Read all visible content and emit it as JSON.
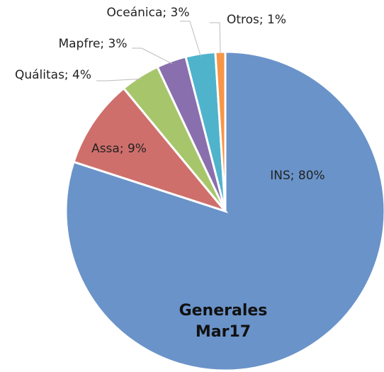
{
  "chart_data": {
    "type": "pie",
    "title": "Generales Mar17",
    "values": [
      80,
      9,
      4,
      3,
      3,
      1
    ],
    "value_labels": [
      "INS; 80%",
      "Assa; 9%",
      "Quálitas; 4%",
      "Mapfre; 3%",
      "Oceánica; 3%",
      "Otros; 1%"
    ],
    "colors": [
      "#6a93c9",
      "#cf6f6c",
      "#a7c66b",
      "#8a6fae",
      "#4fb3cc",
      "#f79646"
    ]
  }
}
